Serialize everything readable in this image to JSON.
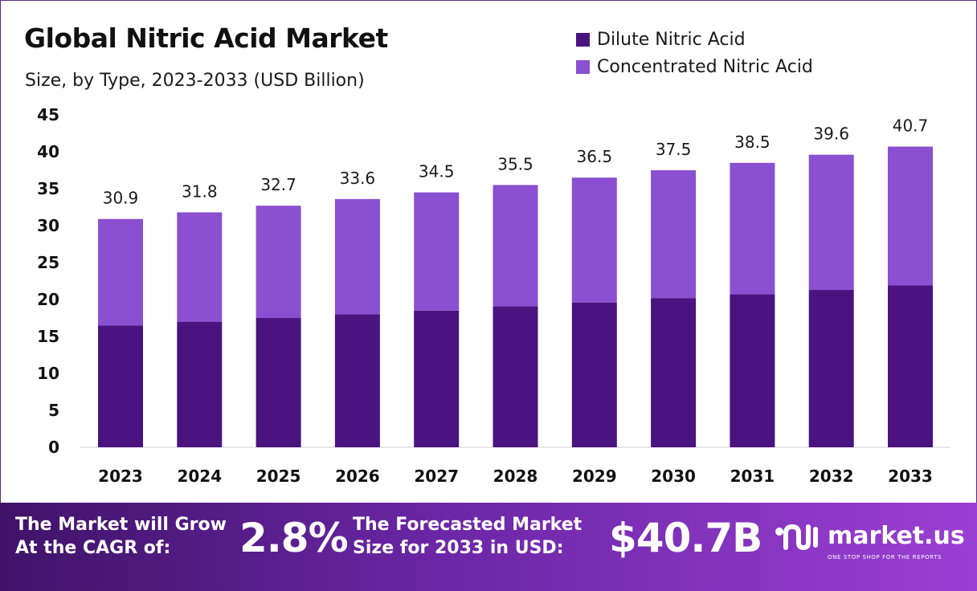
{
  "chart_data": {
    "type": "bar",
    "stacked": true,
    "title": "Global Nitric Acid Market",
    "subtitle": "Size, by Type, 2023-2033 (USD Billion)",
    "categories": [
      "2023",
      "2024",
      "2025",
      "2026",
      "2027",
      "2028",
      "2029",
      "2030",
      "2031",
      "2032",
      "2033"
    ],
    "series": [
      {
        "name": "Dilute Nitric Acid",
        "color": "#4a1380",
        "values": [
          16.5,
          17.0,
          17.5,
          18.0,
          18.5,
          19.1,
          19.6,
          20.2,
          20.7,
          21.3,
          21.9
        ]
      },
      {
        "name": "Concentrated Nitric Acid",
        "color": "#8b4fd1",
        "values": [
          14.4,
          14.8,
          15.2,
          15.6,
          16.0,
          16.4,
          16.9,
          17.3,
          17.8,
          18.3,
          18.8
        ]
      }
    ],
    "totals": [
      "30.9",
      "31.8",
      "32.7",
      "33.6",
      "34.5",
      "35.5",
      "36.5",
      "37.5",
      "38.5",
      "39.6",
      "40.7"
    ],
    "ylim": [
      0,
      45
    ],
    "yticks": [
      0,
      5,
      10,
      15,
      20,
      25,
      30,
      35,
      40,
      45
    ],
    "grid": false,
    "legend": "top-right"
  },
  "banner": {
    "cagr_label_1": "The Market will Grow",
    "cagr_label_2": "At the CAGR of:",
    "cagr_value": "2.8%",
    "forecast_label_1": "The Forecasted Market",
    "forecast_label_2": "Size for 2033 in USD:",
    "forecast_value": "$40.7B",
    "brand_name": "market.us",
    "brand_tagline": "ONE STOP SHOP FOR THE REPORTS",
    "logo_icon": "market-us-logo-icon"
  }
}
